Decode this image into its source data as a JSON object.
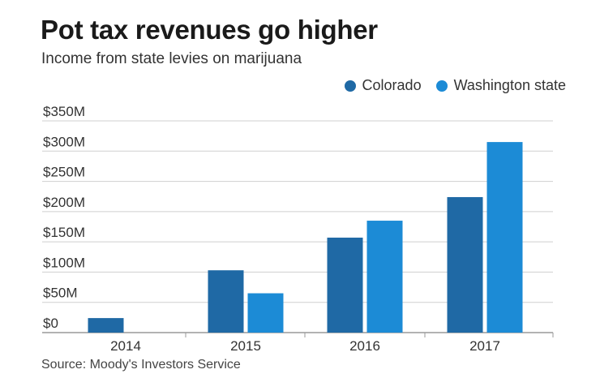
{
  "chart_data": {
    "type": "bar",
    "title": "Pot tax revenues go higher",
    "subtitle": "Income from state levies on marijuana",
    "source": "Source: Moody's Investors Service",
    "categories": [
      "2014",
      "2015",
      "2016",
      "2017"
    ],
    "series": [
      {
        "name": "Colorado",
        "color": "#1f69a5",
        "values": [
          24,
          103,
          157,
          224
        ]
      },
      {
        "name": "Washington state",
        "color": "#1c8bd6",
        "values": [
          null,
          65,
          185,
          315
        ]
      }
    ],
    "y_ticks": [
      "$0",
      "$50M",
      "$100M",
      "$150M",
      "$200M",
      "$250M",
      "$300M",
      "$350M"
    ],
    "ylim": [
      0,
      350
    ],
    "grid": true,
    "legend": "top-right"
  }
}
